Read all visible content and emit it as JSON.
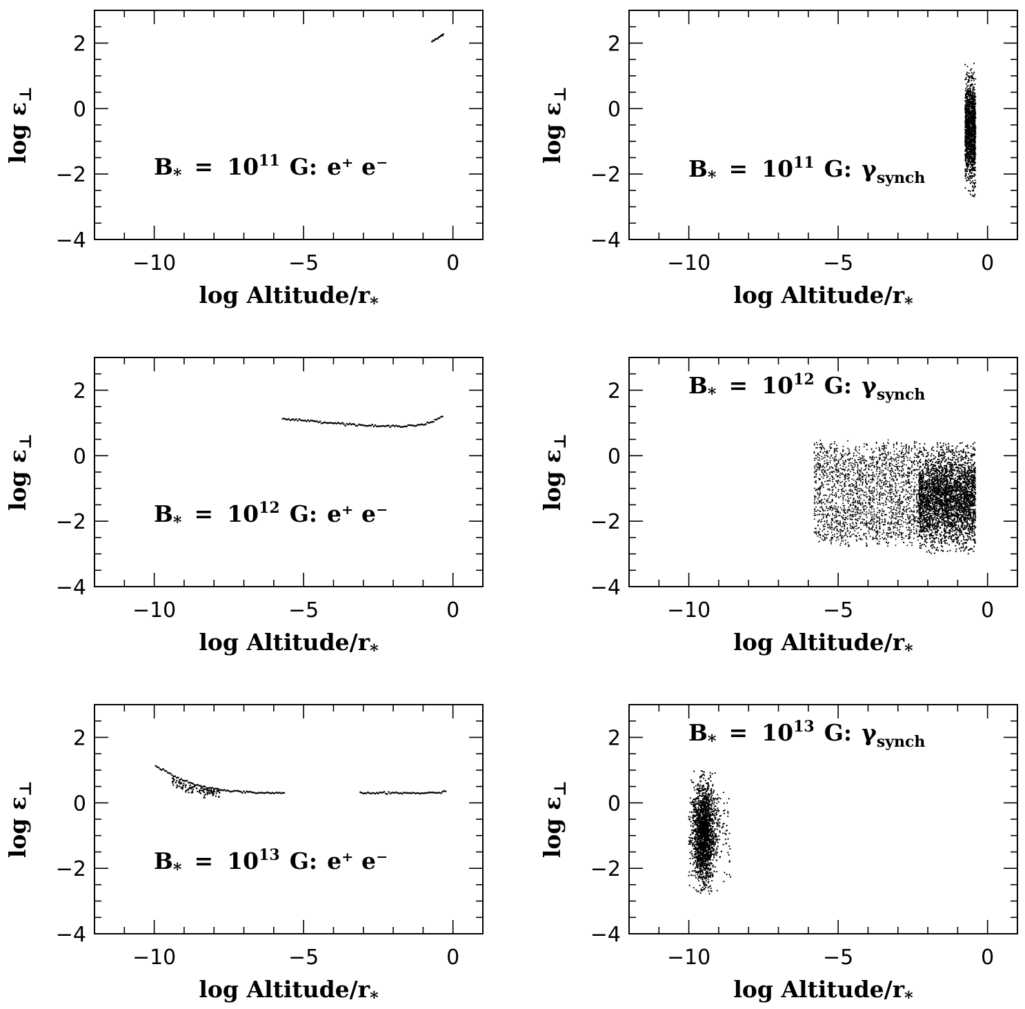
{
  "figure": {
    "panels": [
      {
        "id": "p11-pairs",
        "label_parts": {
          "prefix": "B",
          "star": "*",
          "eq": "=",
          "base": "10",
          "exp": "11",
          "unit": "G:",
          "tail": "e⁺ e⁻"
        }
      },
      {
        "id": "p11-synch",
        "label_parts": {
          "prefix": "B",
          "star": "*",
          "eq": "=",
          "base": "10",
          "exp": "11",
          "unit": "G:",
          "tail": "γ",
          "sub": "synch"
        }
      },
      {
        "id": "p12-pairs",
        "label_parts": {
          "prefix": "B",
          "star": "*",
          "eq": "=",
          "base": "10",
          "exp": "12",
          "unit": "G:",
          "tail": "e⁺ e⁻"
        }
      },
      {
        "id": "p12-synch",
        "label_parts": {
          "prefix": "B",
          "star": "*",
          "eq": "=",
          "base": "10",
          "exp": "12",
          "unit": "G:",
          "tail": "γ",
          "sub": "synch"
        }
      },
      {
        "id": "p13-pairs",
        "label_parts": {
          "prefix": "B",
          "star": "*",
          "eq": "=",
          "base": "10",
          "exp": "13",
          "unit": "G:",
          "tail": "e⁺ e⁻"
        }
      },
      {
        "id": "p13-synch",
        "label_parts": {
          "prefix": "B",
          "star": "*",
          "eq": "=",
          "base": "10",
          "exp": "13",
          "unit": "G:",
          "tail": "γ",
          "sub": "synch"
        }
      }
    ]
  },
  "chart_data": [
    {
      "type": "scatter",
      "panel": "p11-pairs",
      "xlabel": "log Altitude/r*",
      "ylabel": "log ε⊥",
      "xlim": [
        -12,
        1
      ],
      "ylim": [
        -4,
        3
      ],
      "xticks": [
        "−10",
        "−5",
        "0"
      ],
      "yticks": [
        "−4",
        "−2",
        "0",
        "2"
      ],
      "annotation": "B* = 10^11 G: e+ e−",
      "series": [
        {
          "name": "e+ e-",
          "kind": "curve",
          "points": [
            [
              -0.7,
              2.05
            ],
            [
              -0.55,
              2.12
            ],
            [
              -0.4,
              2.22
            ],
            [
              -0.3,
              2.3
            ]
          ]
        }
      ]
    },
    {
      "type": "scatter",
      "panel": "p11-synch",
      "xlabel": "log Altitude/r*",
      "ylabel": "log ε⊥",
      "xlim": [
        -12,
        1
      ],
      "ylim": [
        -4,
        3
      ],
      "xticks": [
        "−10",
        "−5",
        "0"
      ],
      "yticks": [
        "−4",
        "−2",
        "0",
        "2"
      ],
      "annotation": "B* = 10^11 G: γsynch",
      "series": [
        {
          "name": "γ synch",
          "kind": "cloud",
          "x_range": [
            -0.75,
            -0.4
          ],
          "y_center": -0.7,
          "y_spread": 0.75,
          "y_min": -2.8,
          "y_max": 1.4,
          "count": 1400
        }
      ]
    },
    {
      "type": "scatter",
      "panel": "p12-pairs",
      "xlabel": "log Altitude/r*",
      "ylabel": "log ε⊥",
      "xlim": [
        -12,
        1
      ],
      "ylim": [
        -4,
        3
      ],
      "xticks": [
        "−10",
        "−5",
        "0"
      ],
      "yticks": [
        "−4",
        "−2",
        "0",
        "2"
      ],
      "annotation": "B* = 10^12 G: e+ e−",
      "series": [
        {
          "name": "e+ e-",
          "kind": "curve",
          "points": [
            [
              -5.7,
              1.12
            ],
            [
              -5.0,
              1.08
            ],
            [
              -4.0,
              1.0
            ],
            [
              -3.0,
              0.93
            ],
            [
              -2.5,
              0.9
            ],
            [
              -2.0,
              0.9
            ],
            [
              -1.5,
              0.92
            ],
            [
              -1.0,
              0.95
            ],
            [
              -0.7,
              1.03
            ],
            [
              -0.5,
              1.12
            ],
            [
              -0.3,
              1.25
            ]
          ]
        }
      ]
    },
    {
      "type": "scatter",
      "panel": "p12-synch",
      "xlabel": "log Altitude/r*",
      "ylabel": "log ε⊥",
      "xlim": [
        -12,
        1
      ],
      "ylim": [
        -4,
        3
      ],
      "xticks": [
        "−10",
        "−5",
        "0"
      ],
      "yticks": [
        "−4",
        "−2",
        "0",
        "2"
      ],
      "annotation": "B* = 10^12 G: γsynch",
      "series": [
        {
          "name": "γ synch (left band)",
          "kind": "stripes",
          "x_range": [
            -5.8,
            -2.3
          ],
          "y_min": -2.8,
          "y_max": 0.5,
          "count": 2200
        },
        {
          "name": "γ synch (right band)",
          "kind": "cloud",
          "x_range": [
            -2.3,
            -0.4
          ],
          "y_center": -1.3,
          "y_spread": 0.75,
          "y_min": -3.0,
          "y_max": 0.4,
          "count": 3200
        }
      ]
    },
    {
      "type": "scatter",
      "panel": "p13-pairs",
      "xlabel": "log Altitude/r*",
      "ylabel": "log ε⊥",
      "xlim": [
        -12,
        1
      ],
      "ylim": [
        -4,
        3
      ],
      "xticks": [
        "−10",
        "−5",
        "0"
      ],
      "yticks": [
        "−4",
        "−2",
        "0",
        "2"
      ],
      "annotation": "B* = 10^13 G: e+ e−",
      "series": [
        {
          "name": "e+ e- (deep)",
          "kind": "curve",
          "points": [
            [
              -9.95,
              1.12
            ],
            [
              -9.6,
              0.95
            ],
            [
              -9.2,
              0.75
            ],
            [
              -8.8,
              0.6
            ],
            [
              -8.4,
              0.5
            ],
            [
              -8.0,
              0.43
            ],
            [
              -7.5,
              0.37
            ],
            [
              -7.0,
              0.33
            ],
            [
              -6.5,
              0.31
            ],
            [
              -6.0,
              0.3
            ],
            [
              -5.6,
              0.3
            ]
          ]
        },
        {
          "name": "e+ e- (shallow)",
          "kind": "curve",
          "points": [
            [
              -3.1,
              0.3
            ],
            [
              -2.5,
              0.3
            ],
            [
              -2.0,
              0.3
            ],
            [
              -1.0,
              0.3
            ],
            [
              -0.5,
              0.3
            ],
            [
              -0.2,
              0.36
            ]
          ]
        }
      ]
    },
    {
      "type": "scatter",
      "panel": "p13-synch",
      "xlabel": "log Altitude/r*",
      "ylabel": "log ε⊥",
      "xlim": [
        -12,
        1
      ],
      "ylim": [
        -4,
        3
      ],
      "xticks": [
        "−10",
        "−5",
        "0"
      ],
      "yticks": [
        "−4",
        "−2",
        "0",
        "2"
      ],
      "annotation": "B* = 10^13 G: γsynch",
      "series": [
        {
          "name": "γ synch",
          "kind": "cloud",
          "x_range": [
            -10.0,
            -8.6
          ],
          "x_peak": -9.5,
          "y_center": -0.9,
          "y_spread": 0.75,
          "y_min": -2.8,
          "y_max": 1.0,
          "count": 2200
        }
      ]
    }
  ]
}
